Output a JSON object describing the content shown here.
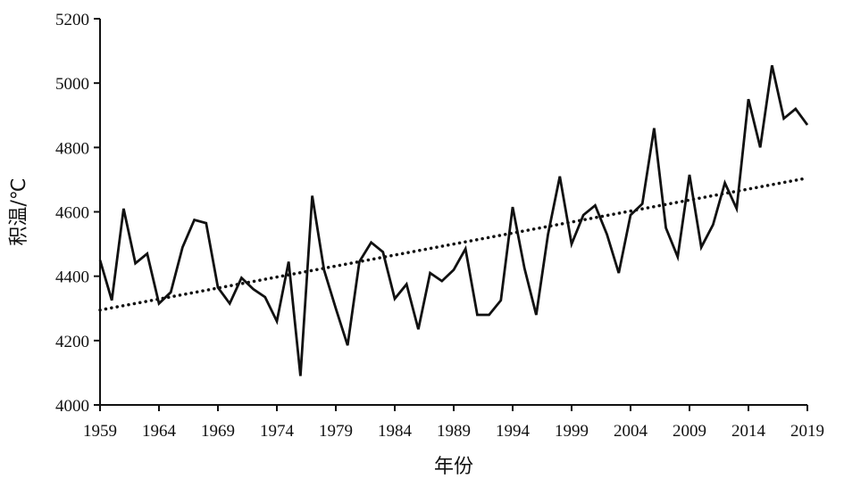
{
  "chart_data": {
    "type": "line",
    "xlabel": "年份",
    "ylabel": "积温/℃",
    "xlim": [
      1959,
      2019
    ],
    "ylim": [
      4000,
      5200
    ],
    "x_ticks": [
      "1959",
      "1964",
      "1969",
      "1974",
      "1979",
      "1984",
      "1989",
      "1994",
      "1999",
      "2004",
      "2009",
      "2014",
      "2019"
    ],
    "y_ticks": [
      "4000",
      "4200",
      "4400",
      "4600",
      "4800",
      "5000",
      "5200"
    ],
    "grid": false,
    "legend": "none",
    "series": [
      {
        "style": "solid",
        "color": "#111111",
        "x": [
          1959,
          1960,
          1961,
          1962,
          1963,
          1964,
          1965,
          1966,
          1967,
          1968,
          1969,
          1970,
          1971,
          1972,
          1973,
          1974,
          1975,
          1976,
          1977,
          1978,
          1979,
          1980,
          1981,
          1982,
          1983,
          1984,
          1985,
          1986,
          1987,
          1988,
          1989,
          1990,
          1991,
          1992,
          1993,
          1994,
          1995,
          1996,
          1997,
          1998,
          1999,
          2000,
          2001,
          2002,
          2003,
          2004,
          2005,
          2006,
          2007,
          2008,
          2009,
          2010,
          2011,
          2012,
          2013,
          2014,
          2015,
          2016,
          2017,
          2018,
          2019
        ],
        "values": [
          4450,
          4325,
          4610,
          4440,
          4470,
          4315,
          4350,
          4490,
          4575,
          4565,
          4365,
          4315,
          4395,
          4360,
          4335,
          4260,
          4445,
          4090,
          4650,
          4420,
          4300,
          4185,
          4445,
          4505,
          4475,
          4330,
          4375,
          4235,
          4410,
          4385,
          4420,
          4485,
          4280,
          4280,
          4325,
          4615,
          4425,
          4280,
          4530,
          4710,
          4500,
          4590,
          4620,
          4530,
          4410,
          4590,
          4625,
          4860,
          4550,
          4460,
          4715,
          4490,
          4560,
          4690,
          4610,
          4950,
          4800,
          5055,
          4890,
          4920,
          4870
        ]
      },
      {
        "style": "dotted",
        "color": "#111111",
        "x": [
          1959,
          2019
        ],
        "values": [
          4295,
          4705
        ]
      }
    ]
  }
}
